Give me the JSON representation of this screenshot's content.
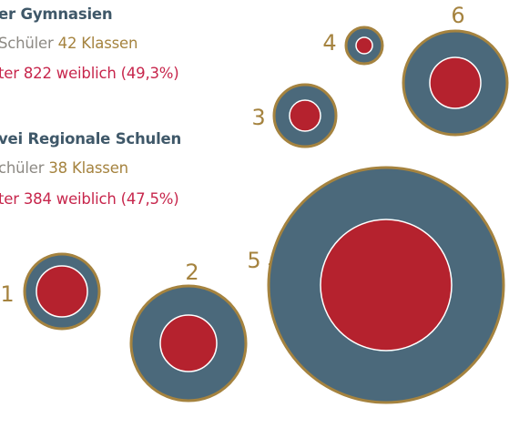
{
  "blocks": [
    {
      "title": "er Gymnasien",
      "students": "Schüler",
      "classes": "42 Klassen",
      "female": "ter 822 weiblich (49,3%)"
    },
    {
      "title": "vei Regionale Schulen",
      "students": "chüler",
      "classes": "38 Klassen",
      "female": "ter 384 weiblich (47,5%)"
    }
  ],
  "nodes": [
    {
      "label": "1"
    },
    {
      "label": "2"
    },
    {
      "label": "3"
    },
    {
      "label": "4"
    },
    {
      "label": "5"
    },
    {
      "label": "6"
    }
  ]
}
